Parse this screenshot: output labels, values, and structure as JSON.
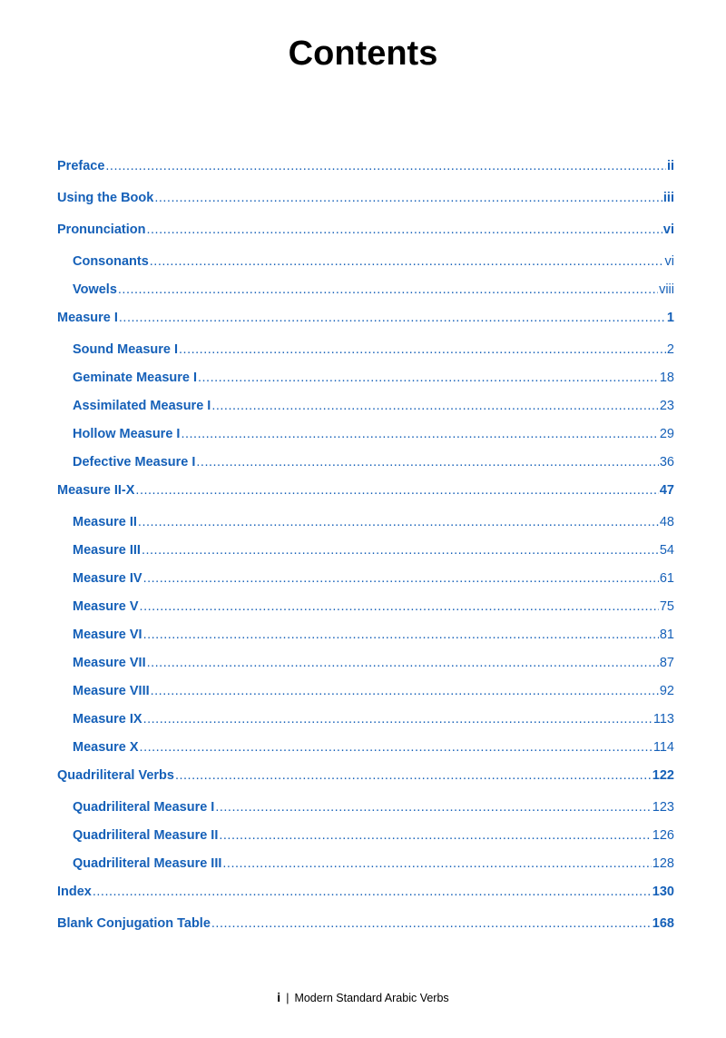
{
  "title": "Contents",
  "entries": [
    {
      "label": "Preface",
      "page": "ii",
      "level": 1
    },
    {
      "label": "Using the Book",
      "page": "iii",
      "level": 1
    },
    {
      "label": "Pronunciation",
      "page": "vi",
      "level": 1
    },
    {
      "label": "Consonants",
      "page": "vi",
      "level": 2
    },
    {
      "label": "Vowels",
      "page": "viii",
      "level": 2
    },
    {
      "label": "Measure I",
      "page": "1",
      "level": 1
    },
    {
      "label": "Sound Measure I",
      "page": "2",
      "level": 2
    },
    {
      "label": "Geminate Measure I",
      "page": "18",
      "level": 2
    },
    {
      "label": "Assimilated Measure I",
      "page": "23",
      "level": 2
    },
    {
      "label": "Hollow Measure I",
      "page": "29",
      "level": 2
    },
    {
      "label": "Defective Measure I",
      "page": "36",
      "level": 2
    },
    {
      "label": "Measure II-X",
      "page": "47",
      "level": 1
    },
    {
      "label": "Measure II",
      "page": "48",
      "level": 2
    },
    {
      "label": "Measure III",
      "page": "54",
      "level": 2
    },
    {
      "label": "Measure IV",
      "page": "61",
      "level": 2
    },
    {
      "label": "Measure V",
      "page": "75",
      "level": 2
    },
    {
      "label": "Measure VI",
      "page": "81",
      "level": 2
    },
    {
      "label": "Measure VII",
      "page": "87",
      "level": 2
    },
    {
      "label": "Measure VIII",
      "page": "92",
      "level": 2
    },
    {
      "label": "Measure IX",
      "page": "113",
      "level": 2
    },
    {
      "label": "Measure X",
      "page": "114",
      "level": 2
    },
    {
      "label": "Quadriliteral Verbs",
      "page": "122",
      "level": 1
    },
    {
      "label": "Quadriliteral Measure I",
      "page": "123",
      "level": 2
    },
    {
      "label": "Quadriliteral Measure II",
      "page": "126",
      "level": 2
    },
    {
      "label": "Quadriliteral Measure III",
      "page": "128",
      "level": 2
    },
    {
      "label": "Index",
      "page": "130",
      "level": 1
    },
    {
      "label": "Blank Conjugation Table",
      "page": "168",
      "level": 1
    }
  ],
  "footer": {
    "page_number": "i",
    "separator": "|",
    "book_title": "Modern Standard Arabic Verbs"
  },
  "colors": {
    "link": "#1560b8",
    "text": "#000000"
  }
}
